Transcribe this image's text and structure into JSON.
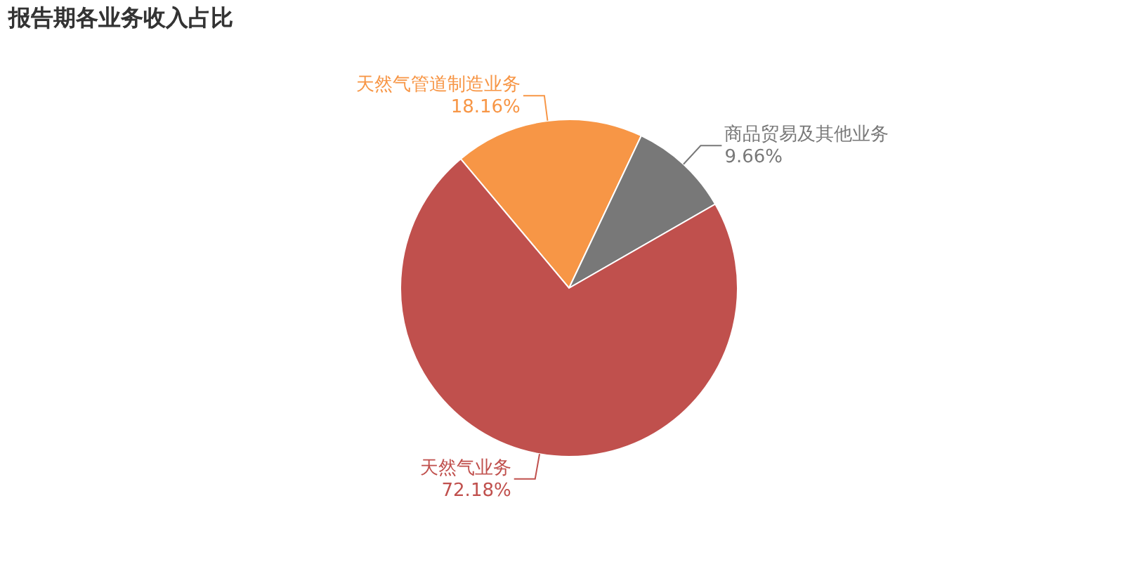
{
  "chart_data": {
    "type": "pie",
    "title": "报告期各业务收入占比",
    "categories": [
      "天然气管道制造业务",
      "商品贸易及其他业务",
      "天然气业务"
    ],
    "values": [
      18.16,
      9.66,
      72.18
    ],
    "colors": [
      "#f79646",
      "#787878",
      "#c0504d"
    ],
    "value_labels": [
      "18.16%",
      "9.66%",
      "72.18%"
    ],
    "legend": false
  }
}
